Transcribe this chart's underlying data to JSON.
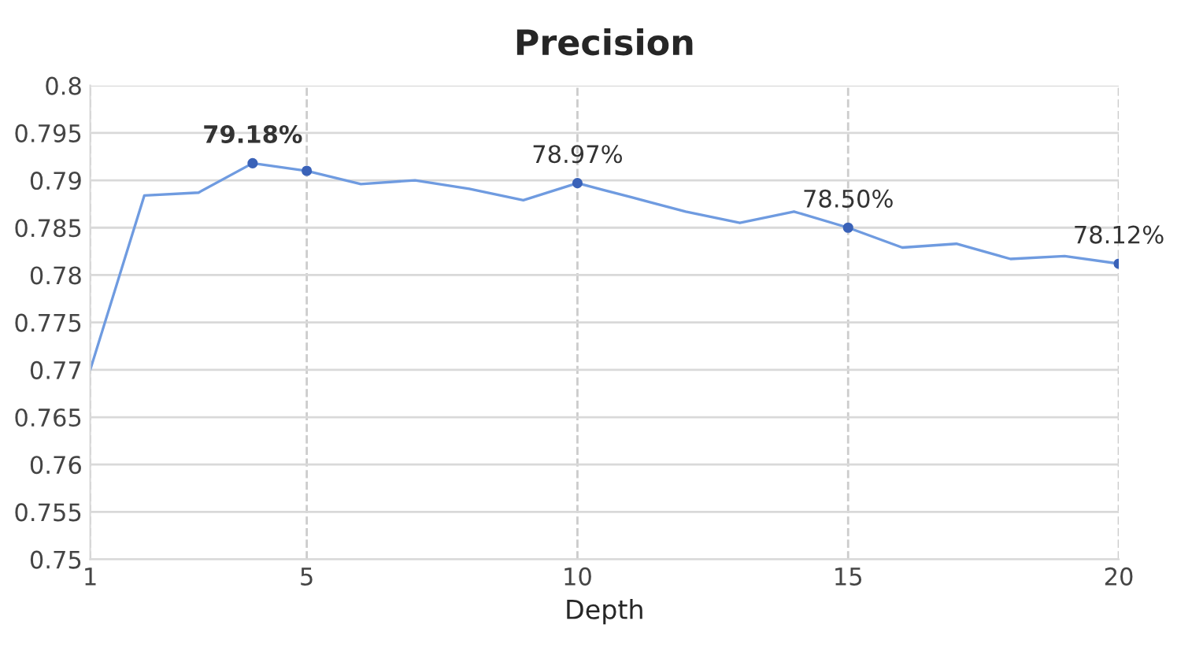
{
  "chart_data": {
    "type": "line",
    "title": "Precision",
    "xlabel": "Depth",
    "x": [
      1,
      2,
      3,
      4,
      5,
      6,
      7,
      8,
      9,
      10,
      11,
      12,
      13,
      14,
      15,
      16,
      17,
      18,
      19,
      20
    ],
    "series": [
      {
        "color": "#6f9be0",
        "marker": "none",
        "values": [
          0.77,
          0.7884,
          0.7887,
          0.7918,
          0.791,
          0.7896,
          0.79,
          0.7891,
          0.7879,
          0.7897,
          0.7882,
          0.7867,
          0.7855,
          0.7867,
          0.785,
          0.7829,
          0.7833,
          0.7817,
          0.782,
          0.7812
        ]
      },
      {
        "type": "scatter",
        "color": "#3a62b8",
        "marker": "circle",
        "x": [
          4,
          5,
          10,
          15,
          20
        ],
        "values": [
          0.7918,
          0.791,
          0.7897,
          0.785,
          0.7812
        ]
      }
    ],
    "annotations": [
      {
        "text": "79.18%",
        "x": 4,
        "y": 0.7918
      },
      {
        "text": "78.97%",
        "x": 10,
        "y": 0.7897
      },
      {
        "text": "78.50%",
        "x": 15,
        "y": 0.785
      },
      {
        "text": "78.12%",
        "x": 20,
        "y": 0.7812
      }
    ],
    "xlim": [
      1,
      20
    ],
    "xticks": [
      1,
      5,
      10,
      15,
      20
    ],
    "ylim": [
      0.75,
      0.8
    ],
    "yticks": [
      0.75,
      0.755,
      0.76,
      0.765,
      0.77,
      0.775,
      0.78,
      0.785,
      0.79,
      0.795,
      0.8
    ],
    "grid": true,
    "legend": false
  }
}
